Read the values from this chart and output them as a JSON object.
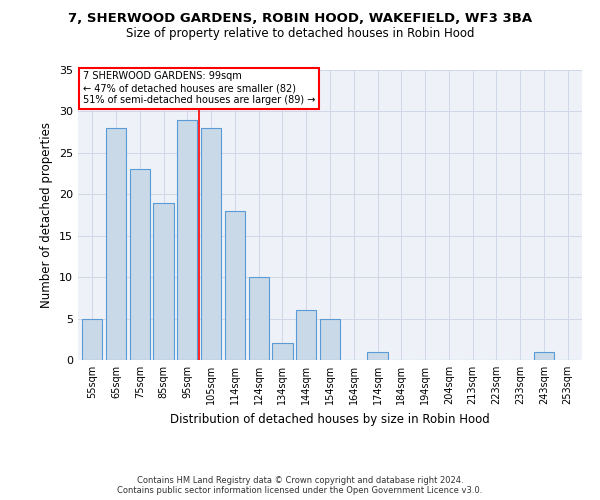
{
  "title": "7, SHERWOOD GARDENS, ROBIN HOOD, WAKEFIELD, WF3 3BA",
  "subtitle": "Size of property relative to detached houses in Robin Hood",
  "xlabel": "Distribution of detached houses by size in Robin Hood",
  "ylabel": "Number of detached properties",
  "footer_line1": "Contains HM Land Registry data © Crown copyright and database right 2024.",
  "footer_line2": "Contains public sector information licensed under the Open Government Licence v3.0.",
  "categories": [
    "55sqm",
    "65sqm",
    "75sqm",
    "85sqm",
    "95sqm",
    "105sqm",
    "114sqm",
    "124sqm",
    "134sqm",
    "144sqm",
    "154sqm",
    "164sqm",
    "174sqm",
    "184sqm",
    "194sqm",
    "204sqm",
    "213sqm",
    "223sqm",
    "233sqm",
    "243sqm",
    "253sqm"
  ],
  "values": [
    5,
    28,
    23,
    19,
    29,
    28,
    18,
    10,
    2,
    6,
    5,
    0,
    1,
    0,
    0,
    0,
    0,
    0,
    0,
    1,
    0
  ],
  "bar_color": "#c9d9e8",
  "bar_edge_color": "#5b9bd5",
  "annotation_box_text": "7 SHERWOOD GARDENS: 99sqm\n← 47% of detached houses are smaller (82)\n51% of semi-detached houses are larger (89) →",
  "red_line_x": 4.5,
  "ylim": [
    0,
    35
  ],
  "yticks": [
    0,
    5,
    10,
    15,
    20,
    25,
    30,
    35
  ],
  "grid_color": "#d0d8e8",
  "background_color": "#eef2f8",
  "fig_background": "#ffffff"
}
